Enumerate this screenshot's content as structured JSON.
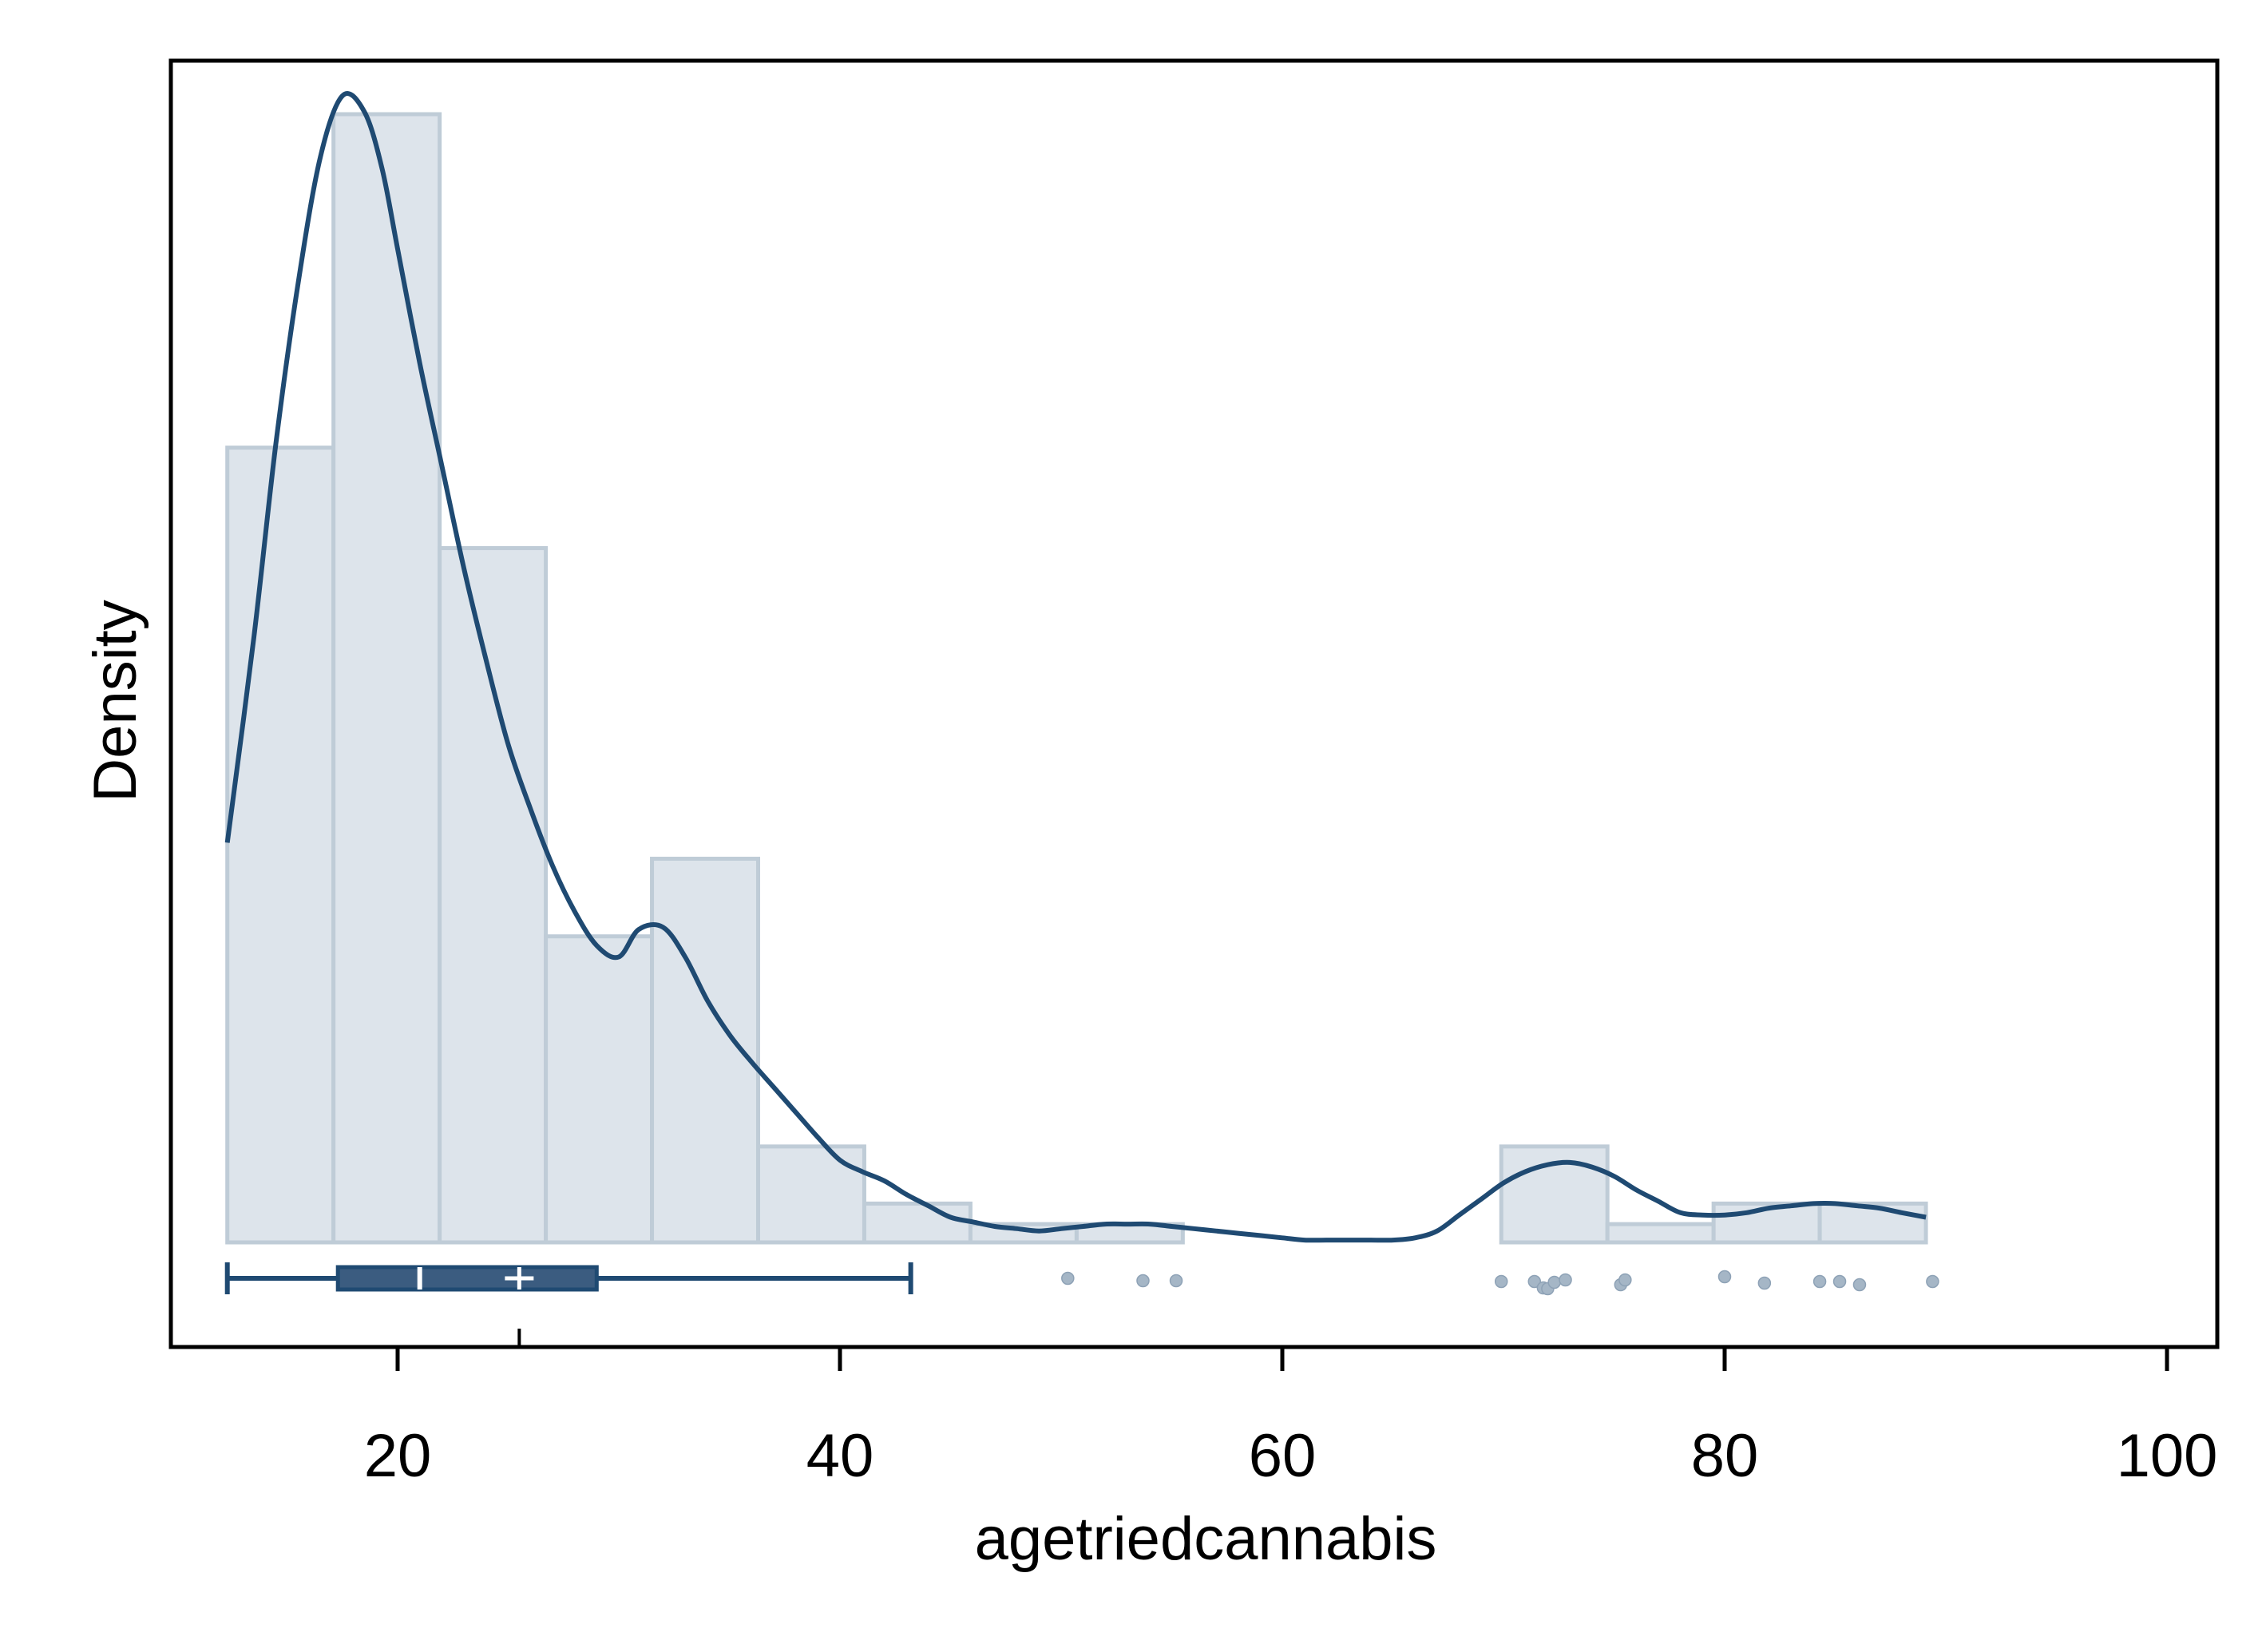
{
  "chart_data": {
    "type": "histogram",
    "xlabel": "agetriedcannabis",
    "ylabel": "Density",
    "xlim": [
      10,
      102
    ],
    "x_ticks": [
      20,
      40,
      60,
      80,
      100
    ],
    "x_tick_labels": [
      "20",
      "40",
      "60",
      "80",
      "100"
    ],
    "y_ticks_shown": false,
    "legend": "none",
    "colors": {
      "bar_fill": "#dde4eb",
      "bar_stroke": "#bfccd7",
      "line": "#1f4a72",
      "box_fill": "#3b5c80",
      "box_stroke": "#1f4a72",
      "outlier": "#a5b6c6",
      "frame": "#000000"
    },
    "histogram": {
      "bin_edges": [
        12.3,
        17.1,
        21.9,
        26.7,
        31.5,
        36.3,
        41.1,
        45.9,
        50.7,
        55.5,
        60.3,
        65.1,
        69.9,
        74.7,
        79.5,
        84.3,
        89.1
      ],
      "densities": [
        0.0348,
        0.0494,
        0.0304,
        0.0134,
        0.0168,
        0.0042,
        0.0017,
        0.0008,
        0.0008,
        0.0,
        0.0,
        0.0,
        0.0042,
        0.0008,
        0.0017,
        0.0017
      ]
    },
    "density_curve": {
      "x": [
        12.3,
        13.5,
        14.5,
        15.5,
        16.5,
        17.5,
        18.5,
        19.3,
        20.0,
        21.0,
        22.0,
        23.0,
        24.0,
        25.0,
        26.0,
        27.0,
        28.0,
        29.0,
        30.0,
        30.9,
        32.0,
        33.0,
        34.0,
        35.0,
        36.0,
        37.0,
        38.0,
        39.0,
        40.0,
        41.0,
        42.0,
        43.0,
        44.0,
        45.0,
        46.0,
        47.0,
        48.0,
        49.0,
        50.0,
        51.0,
        52.0,
        53.0,
        54.0,
        55.0,
        56.0,
        57.0,
        58.0,
        59.0,
        60.0,
        61.0,
        62.0,
        63.0,
        64.0,
        65.0,
        66.0,
        67.0,
        68.0,
        69.0,
        70.0,
        71.0,
        72.0,
        73.0,
        74.0,
        75.0,
        76.0,
        77.0,
        78.0,
        79.0,
        80.0,
        81.0,
        82.0,
        83.0,
        84.0,
        85.0,
        86.0,
        87.0,
        88.0,
        89.1
      ],
      "y": [
        0.0175,
        0.0265,
        0.035,
        0.042,
        0.0475,
        0.0502,
        0.0495,
        0.047,
        0.0435,
        0.0385,
        0.034,
        0.0295,
        0.0255,
        0.0218,
        0.019,
        0.0165,
        0.0145,
        0.013,
        0.0125,
        0.0137,
        0.0138,
        0.0125,
        0.0106,
        0.0091,
        0.0079,
        0.0068,
        0.0057,
        0.0046,
        0.0036,
        0.0031,
        0.0027,
        0.0021,
        0.0016,
        0.0011,
        0.0009,
        0.0007,
        0.0006,
        0.0005,
        0.0006,
        0.0007,
        0.0008,
        0.0008,
        0.0008,
        0.0007,
        0.0006,
        0.0005,
        0.0004,
        0.0003,
        0.0002,
        0.0001,
        0.0001,
        0.0001,
        0.0001,
        0.0001,
        0.0002,
        0.0005,
        0.0012,
        0.0019,
        0.0026,
        0.0031,
        0.0034,
        0.0035,
        0.0033,
        0.0029,
        0.0023,
        0.0018,
        0.0013,
        0.0012,
        0.0012,
        0.0013,
        0.0015,
        0.0016,
        0.0017,
        0.0017,
        0.0016,
        0.0015,
        0.0013,
        0.0011
      ]
    },
    "boxplot": {
      "whisker_low": 12.3,
      "q1": 17.3,
      "median": 21.0,
      "q3": 29.0,
      "whisker_high": 43.2,
      "mean": 25.5,
      "outliers": [
        50.3,
        53.7,
        55.2,
        69.9,
        71.4,
        71.8,
        72.0,
        72.3,
        72.8,
        75.3,
        75.5,
        80.0,
        81.8,
        84.3,
        85.2,
        86.1,
        89.4
      ]
    }
  }
}
